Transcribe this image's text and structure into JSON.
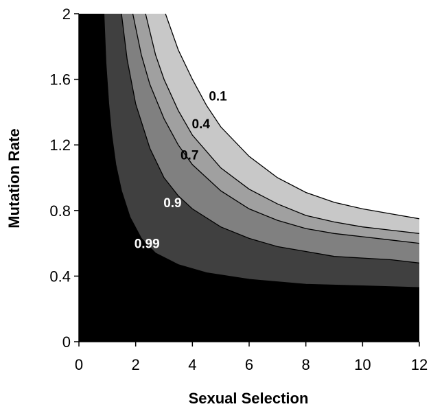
{
  "chart_data": {
    "type": "contour",
    "title": "",
    "xlabel": "Sexual Selection",
    "ylabel": "Mutation Rate",
    "xlim": [
      0,
      12
    ],
    "ylim": [
      0,
      2
    ],
    "x_ticks": [
      "0",
      "2",
      "4",
      "6",
      "8",
      "10",
      "12"
    ],
    "y_ticks": [
      "0",
      "0.4",
      "0.8",
      "1.2",
      "1.6",
      "2"
    ],
    "grid": false,
    "legend": "none",
    "series": [
      {
        "name": "0.1",
        "label_at": [
          4.9,
          1.5
        ],
        "label_color": "#000000",
        "fill": "#c8c8c8",
        "points": [
          [
            3.05,
            2.0
          ],
          [
            3.5,
            1.78
          ],
          [
            4.0,
            1.6
          ],
          [
            4.5,
            1.44
          ],
          [
            5.0,
            1.31
          ],
          [
            6.0,
            1.13
          ],
          [
            7.0,
            1.0
          ],
          [
            8.0,
            0.91
          ],
          [
            9.0,
            0.85
          ],
          [
            10.0,
            0.81
          ],
          [
            11.0,
            0.78
          ],
          [
            12.0,
            0.75
          ]
        ]
      },
      {
        "name": "0.4",
        "label_at": [
          4.3,
          1.33
        ],
        "label_color": "#000000",
        "fill": "#a0a0a0",
        "points": [
          [
            2.35,
            2.0
          ],
          [
            2.7,
            1.75
          ],
          [
            3.0,
            1.6
          ],
          [
            3.5,
            1.41
          ],
          [
            4.0,
            1.26
          ],
          [
            5.0,
            1.06
          ],
          [
            6.0,
            0.93
          ],
          [
            7.0,
            0.84
          ],
          [
            8.0,
            0.77
          ],
          [
            9.0,
            0.73
          ],
          [
            10.0,
            0.7
          ],
          [
            11.0,
            0.68
          ],
          [
            12.0,
            0.66
          ]
        ]
      },
      {
        "name": "0.7",
        "label_at": [
          3.9,
          1.14
        ],
        "label_color": "#000000",
        "fill": "#808080",
        "points": [
          [
            1.9,
            2.0
          ],
          [
            2.2,
            1.75
          ],
          [
            2.5,
            1.57
          ],
          [
            3.0,
            1.36
          ],
          [
            3.5,
            1.2
          ],
          [
            4.0,
            1.08
          ],
          [
            5.0,
            0.92
          ],
          [
            6.0,
            0.81
          ],
          [
            7.0,
            0.74
          ],
          [
            8.0,
            0.69
          ],
          [
            9.0,
            0.66
          ],
          [
            10.0,
            0.64
          ],
          [
            11.0,
            0.62
          ],
          [
            12.0,
            0.6
          ]
        ]
      },
      {
        "name": "0.9",
        "label_at": [
          3.3,
          0.85
        ],
        "label_color": "#ffffff",
        "fill": "#404040",
        "points": [
          [
            1.5,
            2.0
          ],
          [
            1.7,
            1.72
          ],
          [
            2.0,
            1.45
          ],
          [
            2.5,
            1.18
          ],
          [
            3.0,
            1.0
          ],
          [
            3.5,
            0.89
          ],
          [
            4.0,
            0.81
          ],
          [
            5.0,
            0.7
          ],
          [
            6.0,
            0.63
          ],
          [
            7.0,
            0.58
          ],
          [
            8.0,
            0.55
          ],
          [
            9.0,
            0.52
          ],
          [
            10.0,
            0.51
          ],
          [
            11.0,
            0.5
          ],
          [
            12.0,
            0.48
          ]
        ]
      },
      {
        "name": "0.99",
        "label_at": [
          2.4,
          0.6
        ],
        "label_color": "#ffffff",
        "fill": "#000000",
        "points": [
          [
            0.88,
            2.0
          ],
          [
            0.95,
            1.7
          ],
          [
            1.05,
            1.45
          ],
          [
            1.15,
            1.27
          ],
          [
            1.3,
            1.08
          ],
          [
            1.5,
            0.92
          ],
          [
            1.8,
            0.76
          ],
          [
            2.2,
            0.63
          ],
          [
            2.7,
            0.54
          ],
          [
            3.5,
            0.47
          ],
          [
            4.5,
            0.42
          ],
          [
            6.0,
            0.38
          ],
          [
            8.0,
            0.35
          ],
          [
            10.0,
            0.34
          ],
          [
            12.0,
            0.33
          ]
        ]
      }
    ]
  }
}
